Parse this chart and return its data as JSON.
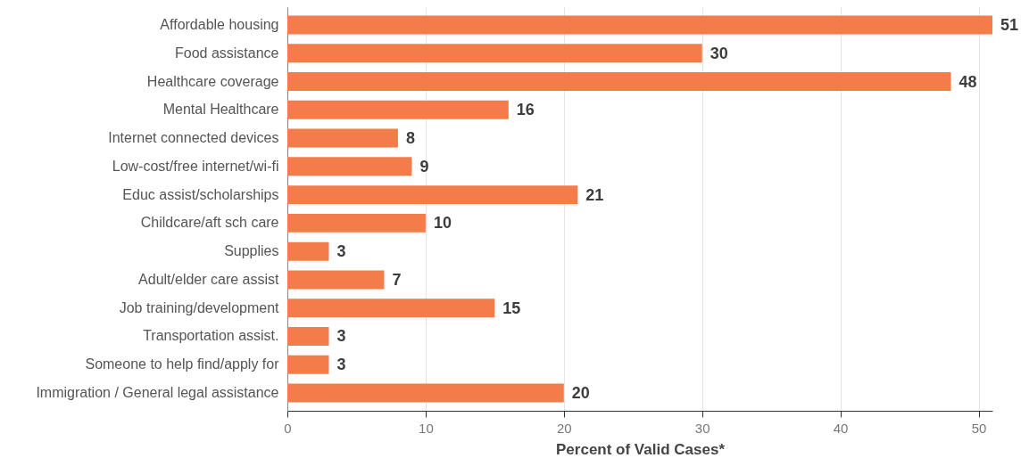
{
  "chart_data": {
    "type": "bar",
    "orientation": "horizontal",
    "xlabel": "Percent of Valid Cases*",
    "categories": [
      "Affordable housing",
      "Food assistance",
      "Healthcare coverage",
      "Mental Healthcare",
      "Internet connected devices",
      "Low-cost/free internet/wi-fi",
      "Educ assist/scholarships",
      "Childcare/aft sch care",
      "Supplies",
      "Adult/elder care assist",
      "Job training/development",
      "Transportation assist.",
      "Someone to help find/apply for",
      "Immigration / General legal assistance"
    ],
    "values": [
      51,
      30,
      48,
      16,
      8,
      9,
      21,
      10,
      3,
      7,
      15,
      3,
      3,
      20
    ],
    "color": "#f47c4a",
    "xlim": [
      0,
      51
    ],
    "xticks": [
      0,
      10,
      20,
      30,
      40,
      50
    ],
    "grid": "x",
    "data_labels": true
  }
}
